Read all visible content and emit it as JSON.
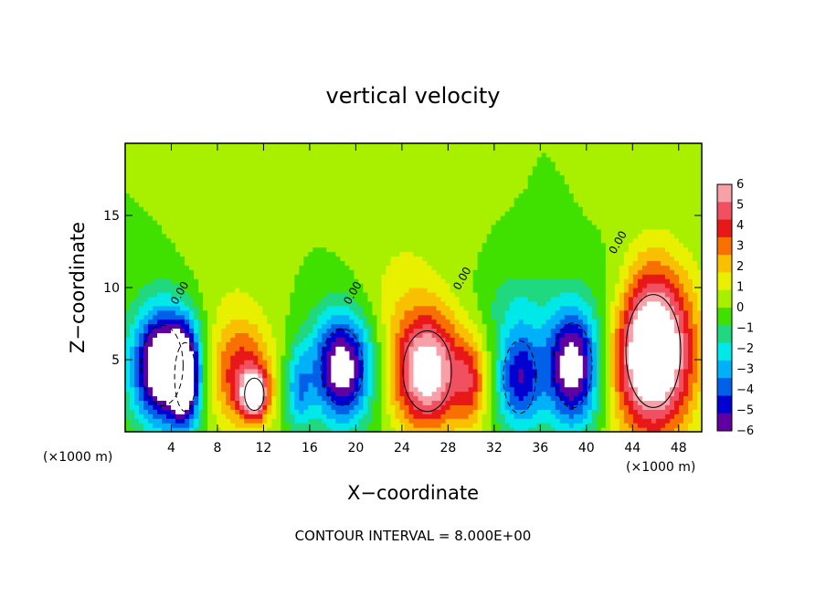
{
  "chart_data": {
    "type": "heatmap",
    "title": "vertical velocity",
    "xlabel": "X−coordinate",
    "ylabel": "Z−coordinate",
    "x_unit": "(×1000 m)",
    "z_unit": "(×1000 m)",
    "xlim": [
      0,
      50
    ],
    "ylim": [
      0,
      20
    ],
    "x_ticks": [
      4,
      8,
      12,
      16,
      20,
      24,
      28,
      32,
      36,
      40,
      44,
      48
    ],
    "y_ticks": [
      5,
      10,
      15
    ],
    "colorbar": {
      "range": [
        -6,
        6
      ],
      "ticks": [
        "6",
        "5",
        "4",
        "3",
        "2",
        "1",
        "0",
        "−1",
        "−2",
        "−3",
        "−4",
        "−5",
        "−6"
      ],
      "colors": [
        "#f8a0a8",
        "#f05060",
        "#e81818",
        "#f87000",
        "#f8c000",
        "#e8f000",
        "#a8f000",
        "#40e000",
        "#20d880",
        "#00e8e8",
        "#00b0f8",
        "#0060e8",
        "#0000d0",
        "#6000a0"
      ]
    },
    "contour_label": "0.00",
    "contour_interval_text": "CONTOUR INTERVAL = 8.000E+00",
    "cells": [
      {
        "x": 3.2,
        "z": 4.6,
        "rx": 2.6,
        "rz": 4.0,
        "w": -8
      },
      {
        "x": 5.2,
        "z": 3.8,
        "rx": 1.3,
        "rz": 3.4,
        "w": -6
      },
      {
        "x": 10.0,
        "z": 4.2,
        "rx": 2.8,
        "rz": 3.8,
        "w": 4
      },
      {
        "x": 11.2,
        "z": 2.6,
        "rx": 1.2,
        "rz": 1.6,
        "w": 6
      },
      {
        "x": 15.0,
        "z": 3.0,
        "rx": 1.2,
        "rz": 3.0,
        "w": -3
      },
      {
        "x": 18.8,
        "z": 4.5,
        "rx": 2.6,
        "rz": 3.8,
        "w": -7
      },
      {
        "x": 26.2,
        "z": 4.2,
        "rx": 3.0,
        "rz": 4.0,
        "w": 7
      },
      {
        "x": 30.0,
        "z": 3.4,
        "rx": 1.4,
        "rz": 3.0,
        "w": 3
      },
      {
        "x": 34.2,
        "z": 3.8,
        "rx": 2.0,
        "rz": 3.6,
        "w": -5
      },
      {
        "x": 38.8,
        "z": 4.6,
        "rx": 2.4,
        "rz": 4.2,
        "w": -7
      },
      {
        "x": 45.8,
        "z": 5.6,
        "rx": 3.4,
        "rz": 5.6,
        "w": 9
      },
      {
        "x": 9.0,
        "z": 12.0,
        "rx": 3.5,
        "rz": 4.0,
        "w": 0.6
      },
      {
        "x": 24.0,
        "z": 10.0,
        "rx": 4.0,
        "rz": 5.0,
        "w": 1.0
      },
      {
        "x": 34.0,
        "z": 9.0,
        "rx": 3.0,
        "rz": 2.5,
        "w": -1.2
      },
      {
        "x": 42.5,
        "z": 9.5,
        "rx": 2.0,
        "rz": 3.5,
        "w": -1.0
      }
    ]
  }
}
